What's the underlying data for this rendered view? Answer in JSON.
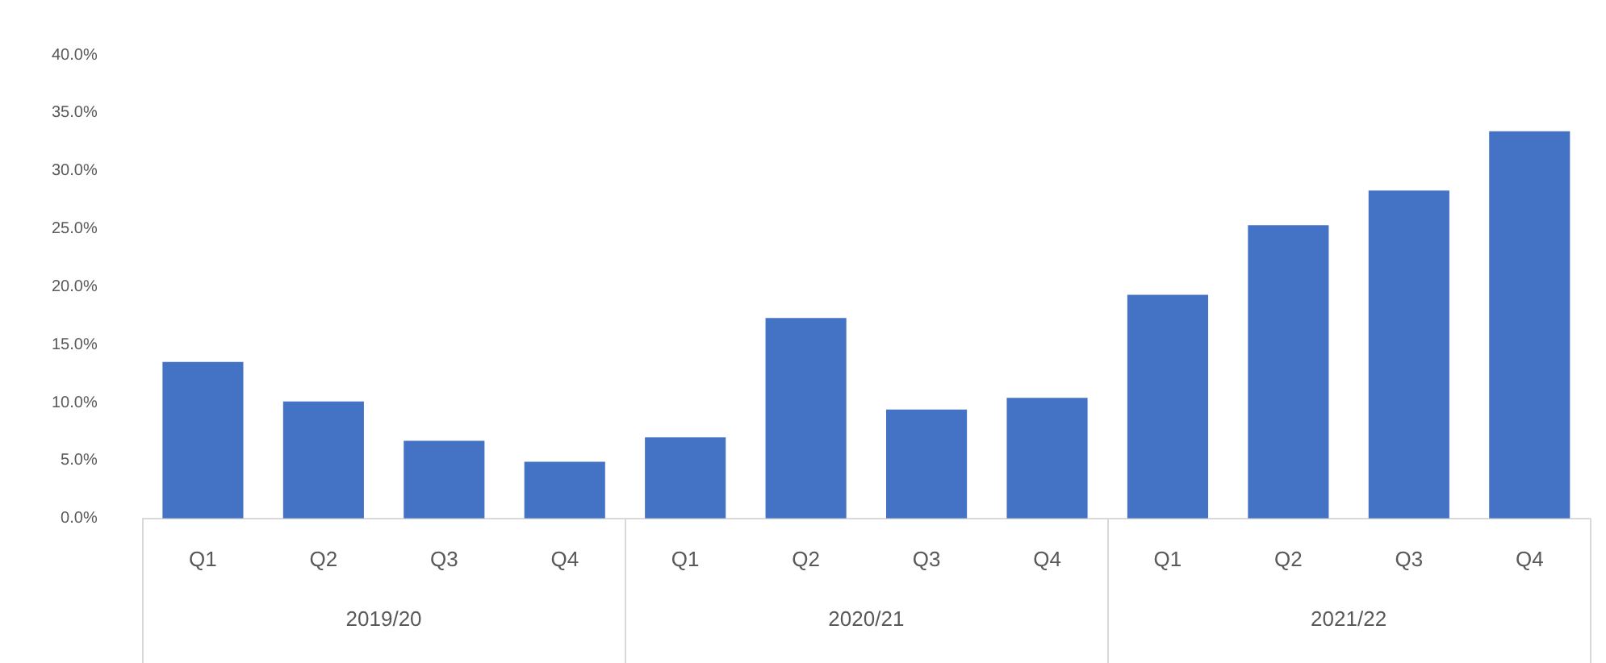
{
  "chart_data": {
    "type": "bar",
    "categories": [
      "Q1",
      "Q2",
      "Q3",
      "Q4",
      "Q1",
      "Q2",
      "Q3",
      "Q4",
      "Q1",
      "Q2",
      "Q3",
      "Q4"
    ],
    "values": [
      13.5,
      10.1,
      6.7,
      4.9,
      7.0,
      17.3,
      9.4,
      10.4,
      19.3,
      25.3,
      28.3,
      33.4
    ],
    "color": "#4472c4",
    "ylim": [
      0,
      40
    ],
    "yticks": [
      {
        "value": 0,
        "label": "0.0%"
      },
      {
        "value": 5,
        "label": "5.0%"
      },
      {
        "value": 10,
        "label": "10.0%"
      },
      {
        "value": 15,
        "label": "15.0%"
      },
      {
        "value": 20,
        "label": "20.0%"
      },
      {
        "value": 25,
        "label": "25.0%"
      },
      {
        "value": 30,
        "label": "30.0%"
      },
      {
        "value": 35,
        "label": "35.0%"
      },
      {
        "value": 40,
        "label": "40.0%"
      }
    ],
    "annotations": [
      "2019/20",
      "2020/21",
      "2021/22"
    ],
    "grid": false,
    "legend": false
  }
}
